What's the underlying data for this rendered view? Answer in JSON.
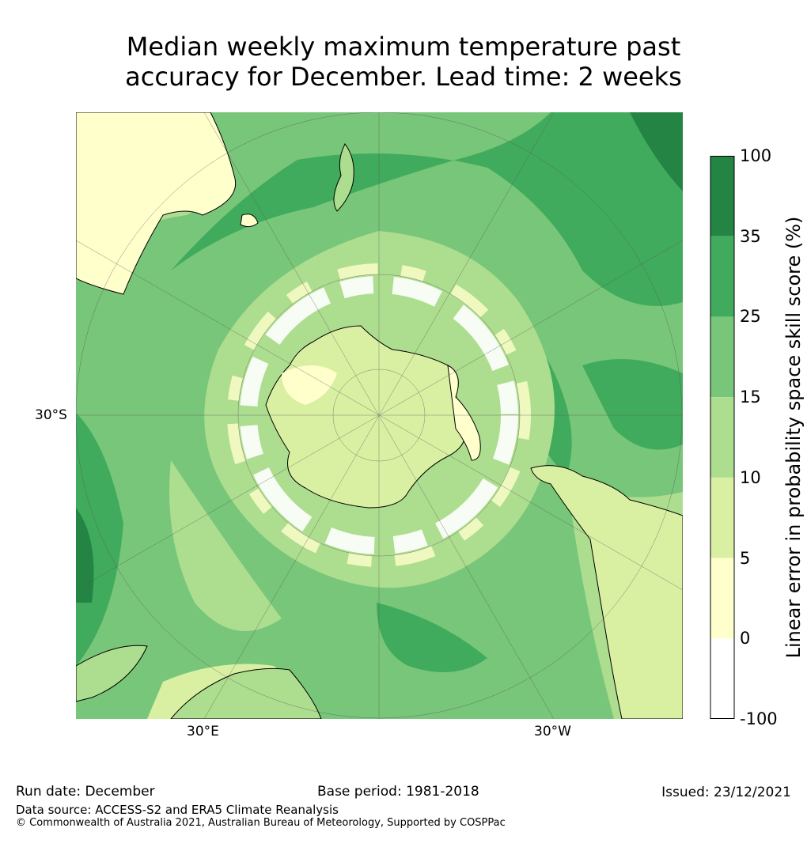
{
  "title_line1": "Median weekly maximum temperature past",
  "title_line2": "accuracy for December. Lead time: 2 weeks",
  "map": {
    "projection": "south-polar-stereographic",
    "lat_label": "30°S",
    "lon_labels": [
      "30°E",
      "30°W"
    ]
  },
  "colorbar": {
    "label": "Linear error in probability space skill score (%)",
    "ticks": [
      "100",
      "35",
      "25",
      "15",
      "10",
      "5",
      "0",
      "-100"
    ],
    "bins": [
      {
        "from": -100,
        "to": 0,
        "color": "#ffffff"
      },
      {
        "from": 0,
        "to": 5,
        "color": "#ffffcc"
      },
      {
        "from": 5,
        "to": 10,
        "color": "#d9f0a3"
      },
      {
        "from": 10,
        "to": 15,
        "color": "#addd8e"
      },
      {
        "from": 15,
        "to": 25,
        "color": "#78c679"
      },
      {
        "from": 25,
        "to": 35,
        "color": "#41ab5d"
      },
      {
        "from": 35,
        "to": 100,
        "color": "#238443"
      }
    ]
  },
  "footer": {
    "run_date": "Run date: December",
    "base_period": "Base period: 1981-2018",
    "issued": "Issued: 23/12/2021",
    "data_source": "Data source: ACCESS-S2 and ERA5 Climate Reanalysis",
    "copyright": "© Commonwealth of Australia 2021, Australian Bureau of Meteorology, Supported by COSPPac"
  }
}
